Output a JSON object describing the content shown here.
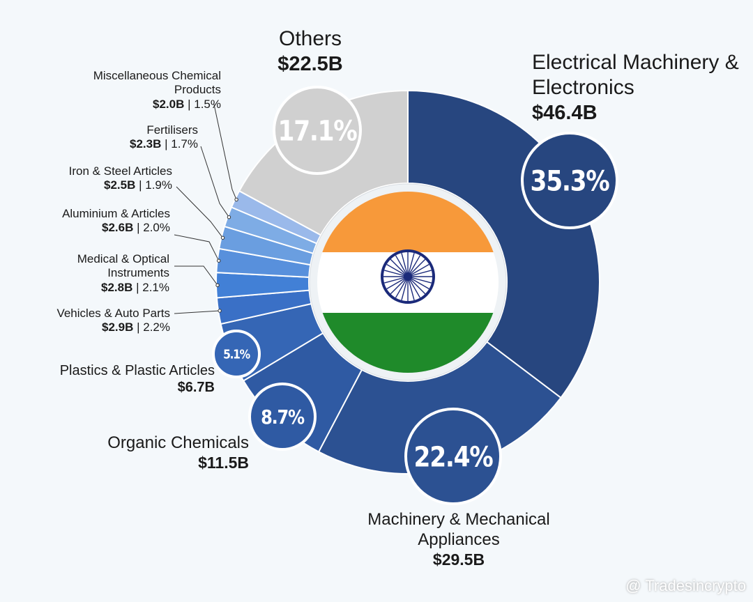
{
  "chart_data": {
    "type": "pie",
    "donut": true,
    "categories": [
      "Electrical Machinery & Electronics",
      "Machinery & Mechanical Appliances",
      "Organic Chemicals",
      "Plastics & Plastic Articles",
      "Vehicles & Auto Parts",
      "Medical & Optical Instruments",
      "Aluminium & Articles",
      "Iron & Steel Articles",
      "Fertilisers",
      "Miscellaneous Chemical Products",
      "Others"
    ],
    "values": [
      35.3,
      22.4,
      8.7,
      5.1,
      2.2,
      2.1,
      2.0,
      1.9,
      1.7,
      1.5,
      17.1
    ],
    "value_labels": [
      "35.3%",
      "22.4%",
      "8.7%",
      "5.1%",
      "2.2%",
      "2.1%",
      "2.0%",
      "1.9%",
      "1.7%",
      "1.5%",
      "17.1%"
    ],
    "amount_labels": [
      "$46.4B",
      "$29.5B",
      "$11.5B",
      "$6.7B",
      "$2.9B",
      "$2.8B",
      "$2.6B",
      "$2.5B",
      "$2.3B",
      "$2.0B",
      "$22.5B"
    ],
    "separator": "|",
    "colors": [
      "#27467f",
      "#2c5192",
      "#2f5aa3",
      "#3566b5",
      "#3a70c6",
      "#4280d6",
      "#5890dc",
      "#6a9ee0",
      "#7eace5",
      "#9ab9ea",
      "#d0d0d0"
    ]
  },
  "watermark": "@ Tradesincrypto"
}
